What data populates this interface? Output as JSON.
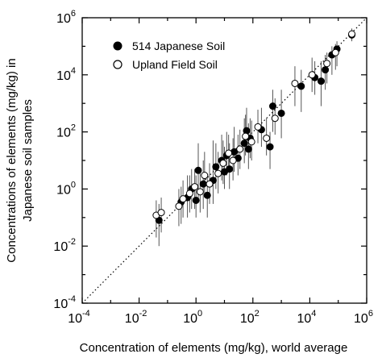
{
  "chart_data": {
    "type": "scatter",
    "xlabel": "Concentration of elements (mg/kg), world average",
    "ylabel_line1": "Concentrations of elements (mg/kg) in",
    "ylabel_line2": "Japanese soil samples",
    "x_scale": "log",
    "y_scale": "log",
    "xlim": [
      0.0001,
      1000000
    ],
    "ylim": [
      0.0001,
      1000000
    ],
    "tick_labels": [
      {
        "base": "10",
        "exp": "-4",
        "value": 0.0001
      },
      {
        "base": "10",
        "exp": "-2",
        "value": 0.01
      },
      {
        "base": "10",
        "exp": "0",
        "value": 1
      },
      {
        "base": "10",
        "exp": "2",
        "value": 100
      },
      {
        "base": "10",
        "exp": "4",
        "value": 10000
      },
      {
        "base": "10",
        "exp": "6",
        "value": 1000000
      }
    ],
    "grid": false,
    "legend_position": "top-left",
    "reference_line": {
      "style": "dotted",
      "from": [
        0.0001,
        0.0001
      ],
      "to": [
        1000000,
        1000000
      ]
    },
    "series": [
      {
        "name": "514 Japanese Soil",
        "marker": "filled-circle",
        "color": "#000000",
        "points": [
          {
            "x": 0.05,
            "y": 0.08,
            "lo": 0.01,
            "hi": 0.3
          },
          {
            "x": 0.3,
            "y": 0.35,
            "lo": 0.06,
            "hi": 1.2
          },
          {
            "x": 0.5,
            "y": 0.5,
            "lo": 0.1,
            "hi": 3
          },
          {
            "x": 0.7,
            "y": 1.0,
            "lo": 0.2,
            "hi": 5
          },
          {
            "x": 1.0,
            "y": 0.4,
            "lo": 0.1,
            "hi": 3
          },
          {
            "x": 1.2,
            "y": 4.5,
            "lo": 0.5,
            "hi": 40
          },
          {
            "x": 1.8,
            "y": 1.5,
            "lo": 0.2,
            "hi": 10
          },
          {
            "x": 2.5,
            "y": 0.6,
            "lo": 0.1,
            "hi": 3
          },
          {
            "x": 4,
            "y": 2,
            "lo": 0.3,
            "hi": 50
          },
          {
            "x": 5,
            "y": 6,
            "lo": 1,
            "hi": 40
          },
          {
            "x": 8,
            "y": 10,
            "lo": 2,
            "hi": 80
          },
          {
            "x": 10,
            "y": 4,
            "lo": 1,
            "hi": 30
          },
          {
            "x": 12,
            "y": 15,
            "lo": 3,
            "hi": 100
          },
          {
            "x": 15,
            "y": 5,
            "lo": 1,
            "hi": 40
          },
          {
            "x": 22,
            "y": 20,
            "lo": 4,
            "hi": 150
          },
          {
            "x": 30,
            "y": 12,
            "lo": 3,
            "hi": 80
          },
          {
            "x": 50,
            "y": 40,
            "lo": 8,
            "hi": 300
          },
          {
            "x": 60,
            "y": 110,
            "lo": 20,
            "hi": 700
          },
          {
            "x": 70,
            "y": 25,
            "lo": 5,
            "hi": 200
          },
          {
            "x": 80,
            "y": 60,
            "lo": 12,
            "hi": 300
          },
          {
            "x": 200,
            "y": 120,
            "lo": 30,
            "hi": 700
          },
          {
            "x": 400,
            "y": 30,
            "lo": 5,
            "hi": 100
          },
          {
            "x": 500,
            "y": 800,
            "lo": 100,
            "hi": 3000
          },
          {
            "x": 1000,
            "y": 450,
            "lo": 60,
            "hi": 3000
          },
          {
            "x": 5000,
            "y": 4000,
            "lo": 500,
            "hi": 15000
          },
          {
            "x": 15000,
            "y": 8000,
            "lo": 2000,
            "hi": 30000
          },
          {
            "x": 25000,
            "y": 6000,
            "lo": 800,
            "hi": 30000
          },
          {
            "x": 35000,
            "y": 15000,
            "lo": 3000,
            "hi": 50000
          },
          {
            "x": 60000,
            "y": 50000,
            "lo": 10000,
            "hi": 100000
          },
          {
            "x": 90000,
            "y": 80000,
            "lo": 20000,
            "hi": 150000
          },
          {
            "x": 300000,
            "y": 250000,
            "lo": 150000,
            "hi": 400000
          }
        ]
      },
      {
        "name": "Upland Field Soil",
        "marker": "open-circle",
        "color": "#000000",
        "points": [
          {
            "x": 0.04,
            "y": 0.12,
            "lo": 0.02,
            "hi": 0.4
          },
          {
            "x": 0.06,
            "y": 0.15,
            "lo": 0.03,
            "hi": 0.5
          },
          {
            "x": 0.25,
            "y": 0.25,
            "lo": 0.05,
            "hi": 1
          },
          {
            "x": 0.35,
            "y": 0.45,
            "lo": 0.1,
            "hi": 2
          },
          {
            "x": 0.6,
            "y": 0.7,
            "lo": 0.15,
            "hi": 3
          },
          {
            "x": 0.9,
            "y": 1.2,
            "lo": 0.2,
            "hi": 5
          },
          {
            "x": 1.4,
            "y": 0.8,
            "lo": 0.15,
            "hi": 4
          },
          {
            "x": 2,
            "y": 3,
            "lo": 0.5,
            "hi": 20
          },
          {
            "x": 3,
            "y": 1.5,
            "lo": 0.3,
            "hi": 8
          },
          {
            "x": 6,
            "y": 3.5,
            "lo": 0.7,
            "hi": 20
          },
          {
            "x": 9,
            "y": 8,
            "lo": 1.5,
            "hi": 50
          },
          {
            "x": 14,
            "y": 18,
            "lo": 4,
            "hi": 80
          },
          {
            "x": 20,
            "y": 10,
            "lo": 2,
            "hi": 60
          },
          {
            "x": 35,
            "y": 25,
            "lo": 5,
            "hi": 120
          },
          {
            "x": 55,
            "y": 70,
            "lo": 15,
            "hi": 400
          },
          {
            "x": 90,
            "y": 45,
            "lo": 10,
            "hi": 250
          },
          {
            "x": 150,
            "y": 150,
            "lo": 40,
            "hi": 600
          },
          {
            "x": 300,
            "y": 60,
            "lo": 15,
            "hi": 300
          },
          {
            "x": 600,
            "y": 300,
            "lo": 80,
            "hi": 1500
          },
          {
            "x": 3000,
            "y": 5000,
            "lo": 800,
            "hi": 20000
          },
          {
            "x": 12000,
            "y": 10000,
            "lo": 2500,
            "hi": 40000
          },
          {
            "x": 40000,
            "y": 25000,
            "lo": 5000,
            "hi": 60000
          },
          {
            "x": 80000,
            "y": 60000,
            "lo": 15000,
            "hi": 120000
          },
          {
            "x": 300000,
            "y": 270000,
            "lo": 160000,
            "hi": 420000
          }
        ]
      }
    ]
  }
}
